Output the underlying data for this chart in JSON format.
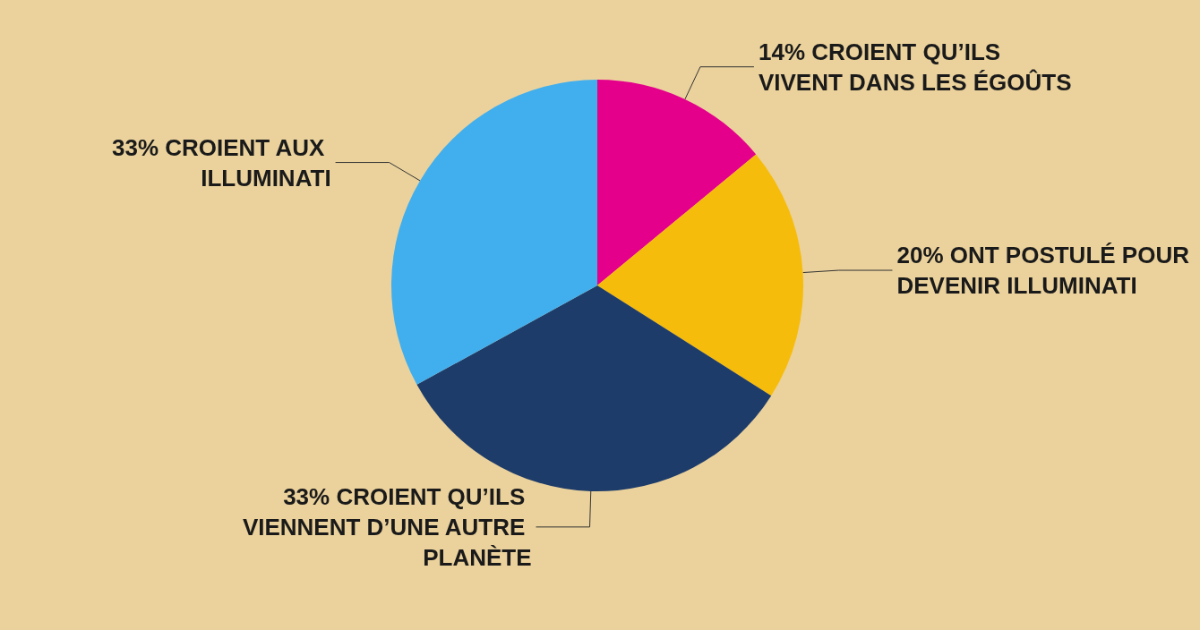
{
  "chart_data": {
    "type": "pie",
    "categories": [
      "14% CROIENT QU’ILS VIVENT DANS LES ÉGOÛTS",
      "20% ONT POSTULÉ POUR DEVENIR ILLUMINATI",
      "33% CROIENT QU’ILS VIENNENT D’UNE AUTRE PLANÈTE",
      "33% CROIENT AUX ILLUMINATI"
    ],
    "values": [
      14,
      20,
      33,
      33
    ],
    "colors": [
      "#e5008c",
      "#f6bc0c",
      "#1e3c6a",
      "#41aeee"
    ]
  }
}
